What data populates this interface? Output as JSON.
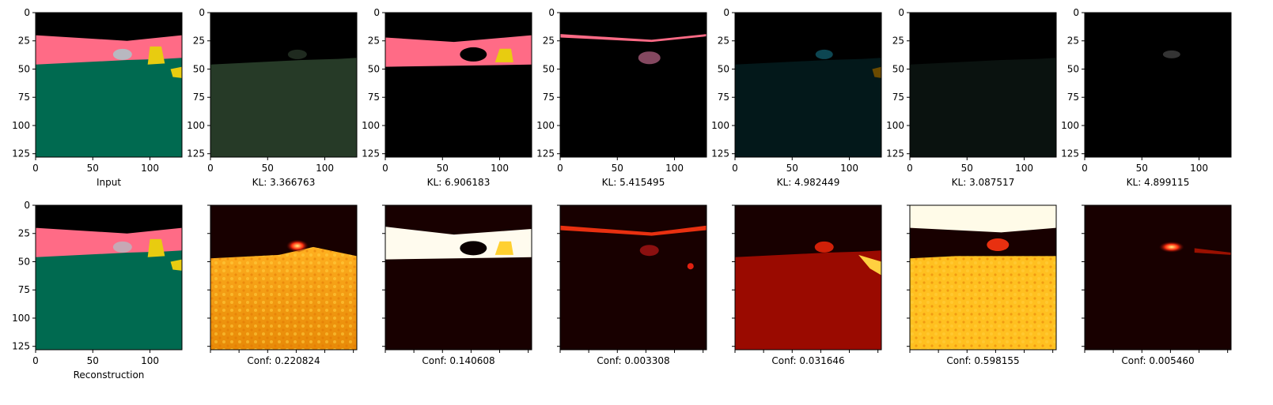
{
  "figure": {
    "tick_labels_x": [
      "0",
      "50",
      "100"
    ],
    "tick_labels_y": [
      "0",
      "25",
      "50",
      "75",
      "100",
      "125"
    ],
    "axis_range": [
      0,
      128
    ],
    "top_row": [
      {
        "caption": "Input",
        "kind": "input"
      },
      {
        "caption": "KL: 3.366763",
        "kind": "comp1"
      },
      {
        "caption": "KL: 6.906183",
        "kind": "comp2"
      },
      {
        "caption": "KL: 5.415495",
        "kind": "comp3"
      },
      {
        "caption": "KL: 4.982449",
        "kind": "comp4"
      },
      {
        "caption": "KL: 3.087517",
        "kind": "comp5"
      },
      {
        "caption": "KL: 4.899115",
        "kind": "comp6"
      }
    ],
    "bottom_row": [
      {
        "caption": "Reconstruction",
        "kind": "recon"
      },
      {
        "caption": "Conf: 0.220824",
        "kind": "heat1"
      },
      {
        "caption": "Conf: 0.140608",
        "kind": "heat2"
      },
      {
        "caption": "Conf: 0.003308",
        "kind": "heat3"
      },
      {
        "caption": "Conf: 0.031646",
        "kind": "heat4"
      },
      {
        "caption": "Conf: 0.598155",
        "kind": "heat5"
      },
      {
        "caption": "Conf: 0.005460",
        "kind": "heat6"
      }
    ],
    "colors": {
      "sky": "#000000",
      "building": "#ff6b86",
      "ground": "#006a50",
      "car": "#b8b8c0",
      "object": "#e8cc10"
    }
  }
}
